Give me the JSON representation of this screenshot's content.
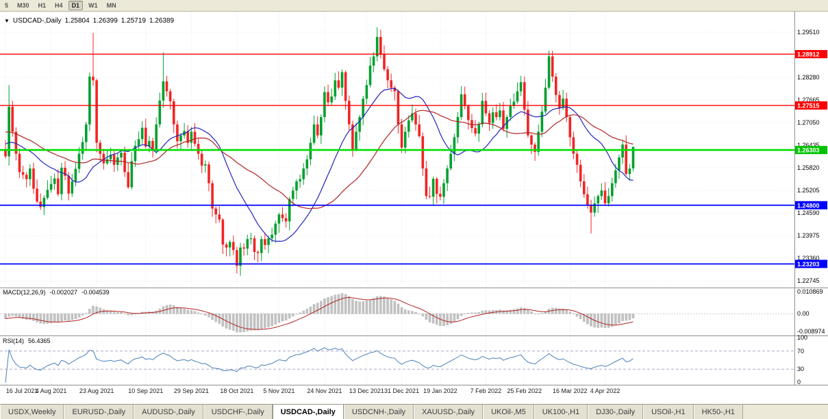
{
  "toolbar": {
    "timeframes": [
      {
        "label": "5"
      },
      {
        "label": "M30"
      },
      {
        "label": "H1"
      },
      {
        "label": "H4"
      },
      {
        "label": "D1"
      },
      {
        "label": "W1"
      },
      {
        "label": "MN"
      }
    ],
    "active": "D1"
  },
  "chart_header": {
    "collapse_icon": "▼",
    "symbol": "USDCAD-,Daily",
    "open": "1.25804",
    "high": "1.26399",
    "low": "1.25719",
    "close": "1.26389"
  },
  "macd_panel": {
    "label": "MACD(12,26,9)",
    "main_value": "-0.002027",
    "signal_value": "-0.004539",
    "axis": [
      "0.010869",
      "0.00",
      "-0.008974"
    ]
  },
  "rsi_panel": {
    "label": "RSI(14)",
    "value": "56.4365",
    "axis": [
      "100",
      "70",
      "30",
      "0"
    ],
    "levels": [
      70,
      30
    ]
  },
  "price_axis": {
    "ticks": [
      "1.29510",
      "1.28280",
      "1.27665",
      "1.27050",
      "1.26435",
      "1.25820",
      "1.25205",
      "1.24590",
      "1.23975",
      "1.23360",
      "1.22745"
    ],
    "badges": [
      {
        "text": "1.28912",
        "color": "#ff0000",
        "price": 1.28912
      },
      {
        "text": "1.27515",
        "color": "#ff0000",
        "price": 1.27515
      },
      {
        "text": "1.26303",
        "color": "#00c400",
        "price": 1.26303
      },
      {
        "text": "1.24800",
        "color": "#0000ff",
        "price": 1.248
      },
      {
        "text": "1.23203",
        "color": "#0000ff",
        "price": 1.23203
      }
    ]
  },
  "hlines": [
    {
      "price": 1.28912,
      "color": "#ff0000",
      "width": 1.4
    },
    {
      "price": 1.27515,
      "color": "#ff0000",
      "width": 1.4
    },
    {
      "price": 1.26303,
      "color": "#00dd00",
      "width": 2.6
    },
    {
      "price": 1.248,
      "color": "#0000ff",
      "width": 1.8
    },
    {
      "price": 1.23203,
      "color": "#0000ff",
      "width": 1.8
    }
  ],
  "x_axis": {
    "labels": [
      {
        "text": "16 Jul 2021",
        "i": 0
      },
      {
        "text": "4 Aug 2021",
        "i": 13
      },
      {
        "text": "23 Aug 2021",
        "i": 26
      },
      {
        "text": "10 Sep 2021",
        "i": 40
      },
      {
        "text": "29 Sep 2021",
        "i": 53
      },
      {
        "text": "18 Oct 2021",
        "i": 66
      },
      {
        "text": "5 Nov 2021",
        "i": 78
      },
      {
        "text": "24 Nov 2021",
        "i": 91
      },
      {
        "text": "13 Dec 2021",
        "i": 103
      },
      {
        "text": "31 Dec 2021",
        "i": 113
      },
      {
        "text": "19 Jan 2022",
        "i": 124
      },
      {
        "text": "7 Feb 2022",
        "i": 137
      },
      {
        "text": "25 Feb 2022",
        "i": 148
      },
      {
        "text": "16 Mar 2022",
        "i": 161
      },
      {
        "text": "4 Apr 2022",
        "i": 171
      }
    ]
  },
  "tabs": [
    {
      "label": "USDX,Weekly",
      "active": false
    },
    {
      "label": "EURUSD-,Daily",
      "active": false
    },
    {
      "label": "AUDUSD-,Daily",
      "active": false
    },
    {
      "label": "USDCHF-,Daily",
      "active": false
    },
    {
      "label": "USDCAD-,Daily",
      "active": true
    },
    {
      "label": "USDCNH-,Daily",
      "active": false
    },
    {
      "label": "XAUUSD-,Daily",
      "active": false
    },
    {
      "label": "UKOil-,M5",
      "active": false
    },
    {
      "label": "UK100-,H1",
      "active": false
    },
    {
      "label": "DJ30-,Daily",
      "active": false
    },
    {
      "label": "USOil-,H1",
      "active": false
    },
    {
      "label": "HK50-,H1",
      "active": false
    }
  ],
  "chart_data": {
    "type": "candlestick",
    "symbol": "USDCAD",
    "timeframe": "Daily",
    "ohlc_display": {
      "open": 1.25804,
      "high": 1.26399,
      "low": 1.25719,
      "close": 1.26389
    },
    "price_range": [
      1.2256,
      1.3005
    ],
    "closes": [
      1.2613,
      1.2748,
      1.268,
      1.262,
      1.257,
      1.2563,
      1.2551,
      1.258,
      1.2525,
      1.249,
      1.2475,
      1.25,
      1.2522,
      1.2538,
      1.2553,
      1.251,
      1.2582,
      1.256,
      1.2512,
      1.2545,
      1.2579,
      1.262,
      1.2652,
      1.27,
      1.283,
      1.282,
      1.265,
      1.262,
      1.2594,
      1.2605,
      1.2617,
      1.259,
      1.261,
      1.2623,
      1.257,
      1.2529,
      1.26,
      1.2642,
      1.266,
      1.2691,
      1.264,
      1.2655,
      1.2631,
      1.27,
      1.2765,
      1.2817,
      1.279,
      1.2763,
      1.27,
      1.2654,
      1.267,
      1.2682,
      1.265,
      1.268,
      1.2647,
      1.262,
      1.2588,
      1.2591,
      1.254,
      1.2471,
      1.2455,
      1.2441,
      1.2373,
      1.2365,
      1.238,
      1.2358,
      1.2315,
      1.2365,
      1.2362,
      1.2388,
      1.239,
      1.2353,
      1.235,
      1.2388,
      1.2372,
      1.239,
      1.24,
      1.243,
      1.2455,
      1.2445,
      1.2436,
      1.2497,
      1.252,
      1.2545,
      1.2551,
      1.258,
      1.2605,
      1.265,
      1.27,
      1.267,
      1.272,
      1.2788,
      1.276,
      1.2776,
      1.282,
      1.28,
      1.2842,
      1.2764,
      1.27,
      1.2632,
      1.268,
      1.272,
      1.277,
      1.2807,
      1.286,
      1.2885,
      1.2938,
      1.289,
      1.285,
      1.282,
      1.28,
      1.279,
      1.27,
      1.2637,
      1.268,
      1.2711,
      1.273,
      1.27,
      1.2668,
      1.258,
      1.2505,
      1.2503,
      1.2552,
      1.2511,
      1.2503,
      1.254,
      1.258,
      1.262,
      1.2665,
      1.272,
      1.2782,
      1.275,
      1.2712,
      1.269,
      1.2675,
      1.27,
      1.2764,
      1.273,
      1.2704,
      1.2733,
      1.272,
      1.2738,
      1.2688,
      1.272,
      1.275,
      1.2762,
      1.279,
      1.2815,
      1.274,
      1.267,
      1.2645,
      1.2625,
      1.268,
      1.2735,
      1.28,
      1.2885,
      1.283,
      1.278,
      1.2745,
      1.277,
      1.272,
      1.2665,
      1.262,
      1.259,
      1.2545,
      1.251,
      1.248,
      1.246,
      1.2485,
      1.2505,
      1.252,
      1.2485,
      1.2505,
      1.254,
      1.2575,
      1.261,
      1.2645,
      1.2565,
      1.258,
      1.2639
    ],
    "overrides": [
      {
        "i": 1,
        "h": 1.2807
      },
      {
        "i": 25,
        "h": 1.2949
      },
      {
        "i": 45,
        "h": 1.2896
      },
      {
        "i": 67,
        "l": 1.2288
      },
      {
        "i": 106,
        "h": 1.2964
      },
      {
        "i": 155,
        "h": 1.2901
      },
      {
        "i": 167,
        "l": 1.2403
      },
      {
        "i": 179,
        "o": 1.25804,
        "h": 1.26399,
        "l": 1.25719,
        "c": 1.26389
      }
    ],
    "ma": [
      {
        "name": "fast",
        "period": 18,
        "color": "#2222bb"
      },
      {
        "name": "slow",
        "period": 36,
        "color": "#b22222"
      }
    ],
    "macd": {
      "fast": 12,
      "slow": 26,
      "signal": 9,
      "main": -0.002027,
      "signal_value": -0.004539,
      "range": [
        -0.0095,
        0.0115
      ]
    },
    "rsi": {
      "period": 14,
      "value": 56.4365,
      "range": [
        0,
        100
      ]
    },
    "hline_prices": [
      1.28912,
      1.27515,
      1.26303,
      1.248,
      1.23203
    ],
    "colors": {
      "up": "#00a02e",
      "down": "#f22424",
      "macd_hist": "#c2c2c2",
      "macd_signal": "#b22222",
      "rsi": "#4a7ebb",
      "grid": "#e5e5e5",
      "divider": "#8f8f8f"
    }
  }
}
